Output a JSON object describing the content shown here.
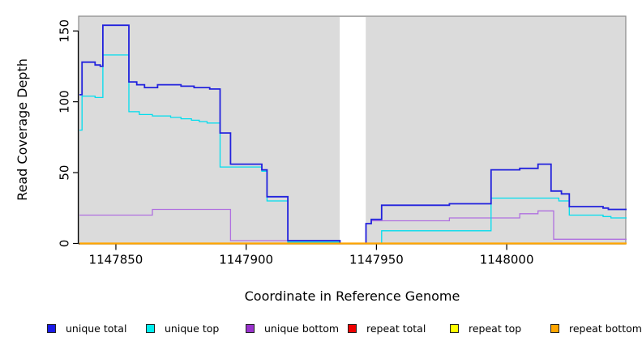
{
  "chart_data": {
    "type": "line",
    "title": "",
    "xlabel": "Coordinate in Reference Genome",
    "ylabel": "Read Coverage Depth",
    "x_ticks": [
      1147850,
      1147900,
      1147950,
      1148000
    ],
    "y_ticks": [
      0,
      50,
      100,
      150
    ],
    "xlim": [
      1147835.7,
      1148045.7
    ],
    "ylim": [
      0,
      160.4
    ],
    "grid": false,
    "step_mode": "after",
    "legend_position": "bottom",
    "colors": {
      "plot_background": "#DBDBDB",
      "page_background": "#FFFFFF",
      "plot_border": "#8A8A8A",
      "axis": "#000000"
    },
    "gap_region": {
      "x_start": 1147935.9,
      "x_end": 1147945.9,
      "color": "#FFFFFF"
    },
    "series": [
      {
        "name": "unique total",
        "color": "#2222DD",
        "legend_color": "#1A1AE6",
        "points": [
          [
            1147836,
            105
          ],
          [
            1147837,
            128
          ],
          [
            1147842,
            126
          ],
          [
            1147844,
            125
          ],
          [
            1147845,
            154
          ],
          [
            1147855,
            114
          ],
          [
            1147858,
            112
          ],
          [
            1147861,
            110
          ],
          [
            1147866,
            112
          ],
          [
            1147875,
            111
          ],
          [
            1147880,
            110
          ],
          [
            1147886,
            109
          ],
          [
            1147890,
            78
          ],
          [
            1147894,
            56
          ],
          [
            1147906,
            52
          ],
          [
            1147908,
            33
          ],
          [
            1147916,
            2
          ],
          [
            1147936,
            0
          ],
          [
            1147946,
            14
          ],
          [
            1147948,
            17
          ],
          [
            1147952,
            27
          ],
          [
            1147978,
            28
          ],
          [
            1147994,
            52
          ],
          [
            1148005,
            53
          ],
          [
            1148012,
            56
          ],
          [
            1148017,
            37
          ],
          [
            1148021,
            35
          ],
          [
            1148024,
            26
          ],
          [
            1148037,
            25
          ],
          [
            1148039,
            24
          ],
          [
            1148046,
            24
          ]
        ]
      },
      {
        "name": "unique top",
        "color": "#00DDEE",
        "legend_color": "#00EEEE",
        "points": [
          [
            1147836,
            80
          ],
          [
            1147837,
            104
          ],
          [
            1147842,
            103
          ],
          [
            1147845,
            133
          ],
          [
            1147855,
            93
          ],
          [
            1147859,
            91
          ],
          [
            1147864,
            90
          ],
          [
            1147871,
            89
          ],
          [
            1147875,
            88
          ],
          [
            1147879,
            87
          ],
          [
            1147882,
            86
          ],
          [
            1147885,
            85
          ],
          [
            1147890,
            54
          ],
          [
            1147906,
            51
          ],
          [
            1147908,
            30
          ],
          [
            1147916,
            1
          ],
          [
            1147936,
            0
          ],
          [
            1147952,
            9
          ],
          [
            1147994,
            32
          ],
          [
            1148020,
            30
          ],
          [
            1148024,
            20
          ],
          [
            1148037,
            19
          ],
          [
            1148040,
            18
          ],
          [
            1148046,
            18
          ]
        ]
      },
      {
        "name": "unique bottom",
        "color": "#B070E0",
        "legend_color": "#9932CC",
        "points": [
          [
            1147836,
            20
          ],
          [
            1147864,
            24
          ],
          [
            1147894,
            2
          ],
          [
            1147936,
            0
          ],
          [
            1147946,
            14
          ],
          [
            1147948,
            16
          ],
          [
            1147978,
            18
          ],
          [
            1148005,
            21
          ],
          [
            1148012,
            23
          ],
          [
            1148018,
            3
          ],
          [
            1148046,
            3
          ]
        ]
      },
      {
        "name": "repeat total",
        "color": "#E00000",
        "legend_color": "#EE0000",
        "points": [
          [
            1147836,
            0
          ],
          [
            1148046,
            0
          ]
        ]
      },
      {
        "name": "repeat top",
        "color": "#FFFF00",
        "legend_color": "#FFFF00",
        "points": [
          [
            1147836,
            0
          ],
          [
            1148046,
            0
          ]
        ]
      },
      {
        "name": "repeat bottom",
        "color": "#FFA500",
        "legend_color": "#FFA500",
        "points": [
          [
            1147836,
            0
          ],
          [
            1148046,
            0
          ]
        ]
      }
    ]
  }
}
